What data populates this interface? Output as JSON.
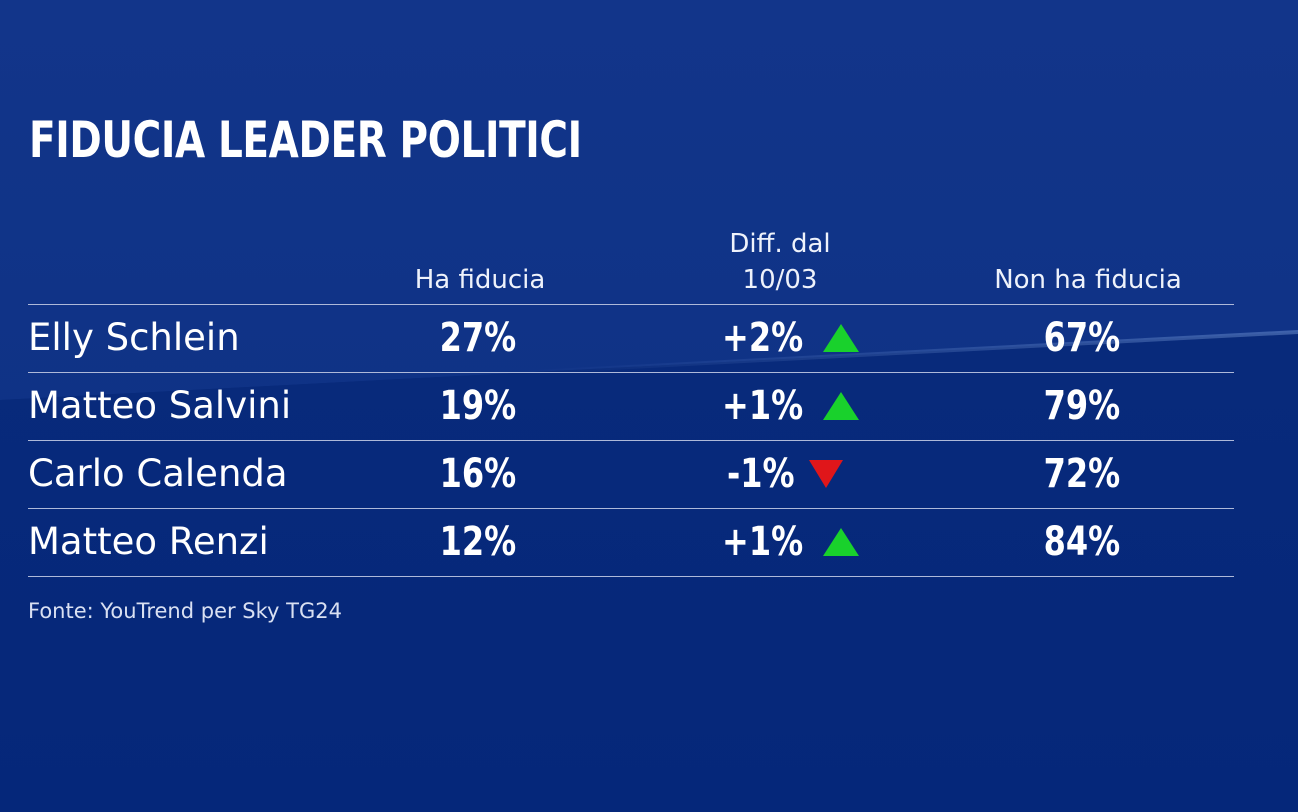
{
  "title": "FIDUCIA LEADER POLITICI",
  "columns": {
    "trust": "Ha fiducia",
    "diff_line1": "Diff. dal",
    "diff_line2": "10/03",
    "no_trust": "Non ha fiducia"
  },
  "source": "Fonte: YouTrend per Sky TG24",
  "colors": {
    "background": "#062a78",
    "up_arrow": "#19d12c",
    "down_arrow": "#e0161a"
  },
  "chart_data": {
    "type": "table",
    "title": "FIDUCIA LEADER POLITICI",
    "headers": [
      "",
      "Ha fiducia",
      "Diff. dal 10/03",
      "Non ha fiducia"
    ],
    "rows": [
      {
        "name": "Elly Schlein",
        "trust": "27%",
        "diff": "+2%",
        "trend": "up",
        "no_trust": "67%"
      },
      {
        "name": "Matteo Salvini",
        "trust": "19%",
        "diff": "+1%",
        "trend": "up",
        "no_trust": "79%"
      },
      {
        "name": "Carlo Calenda",
        "trust": "16%",
        "diff": "-1%",
        "trend": "down",
        "no_trust": "72%"
      },
      {
        "name": "Matteo Renzi",
        "trust": "12%",
        "diff": "+1%",
        "trend": "up",
        "no_trust": "84%"
      }
    ]
  }
}
